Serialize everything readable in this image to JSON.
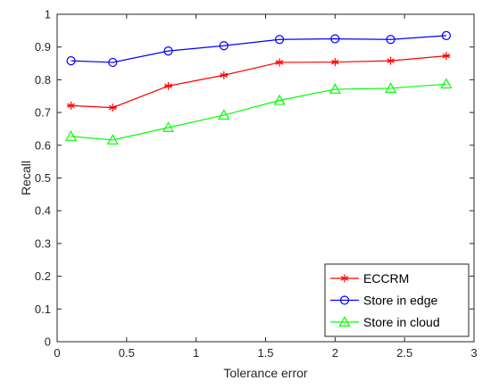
{
  "chart_data": {
    "type": "line",
    "title": "",
    "xlabel": "Tolerance error",
    "ylabel": "Recall",
    "xlim": [
      0,
      3
    ],
    "ylim": [
      0,
      1
    ],
    "xticks": [
      0,
      0.5,
      1,
      1.5,
      2,
      2.5,
      3
    ],
    "xtick_labels": [
      "0",
      "0.5",
      "1",
      "1.5",
      "2",
      "2.5",
      "3"
    ],
    "yticks": [
      0,
      0.1,
      0.2,
      0.3,
      0.4,
      0.5,
      0.6,
      0.7,
      0.8,
      0.9,
      1
    ],
    "ytick_labels": [
      "0",
      "0.1",
      "0.2",
      "0.3",
      "0.4",
      "0.5",
      "0.6",
      "0.7",
      "0.8",
      "0.9",
      "1"
    ],
    "grid": false,
    "legend_position": "bottom-right",
    "x": [
      0.1,
      0.4,
      0.8,
      1.2,
      1.6,
      2.0,
      2.4,
      2.8
    ],
    "series": [
      {
        "name": "ECCRM",
        "color": "#ff0000",
        "marker": "asterisk",
        "values": [
          0.721,
          0.715,
          0.781,
          0.814,
          0.853,
          0.854,
          0.858,
          0.873
        ]
      },
      {
        "name": "Store in edge",
        "color": "#0000ff",
        "marker": "circle",
        "values": [
          0.858,
          0.853,
          0.888,
          0.904,
          0.923,
          0.925,
          0.923,
          0.935
        ]
      },
      {
        "name": "Store in cloud",
        "color": "#00ff00",
        "marker": "triangle",
        "values": [
          0.627,
          0.616,
          0.654,
          0.692,
          0.737,
          0.771,
          0.774,
          0.787
        ]
      }
    ]
  }
}
